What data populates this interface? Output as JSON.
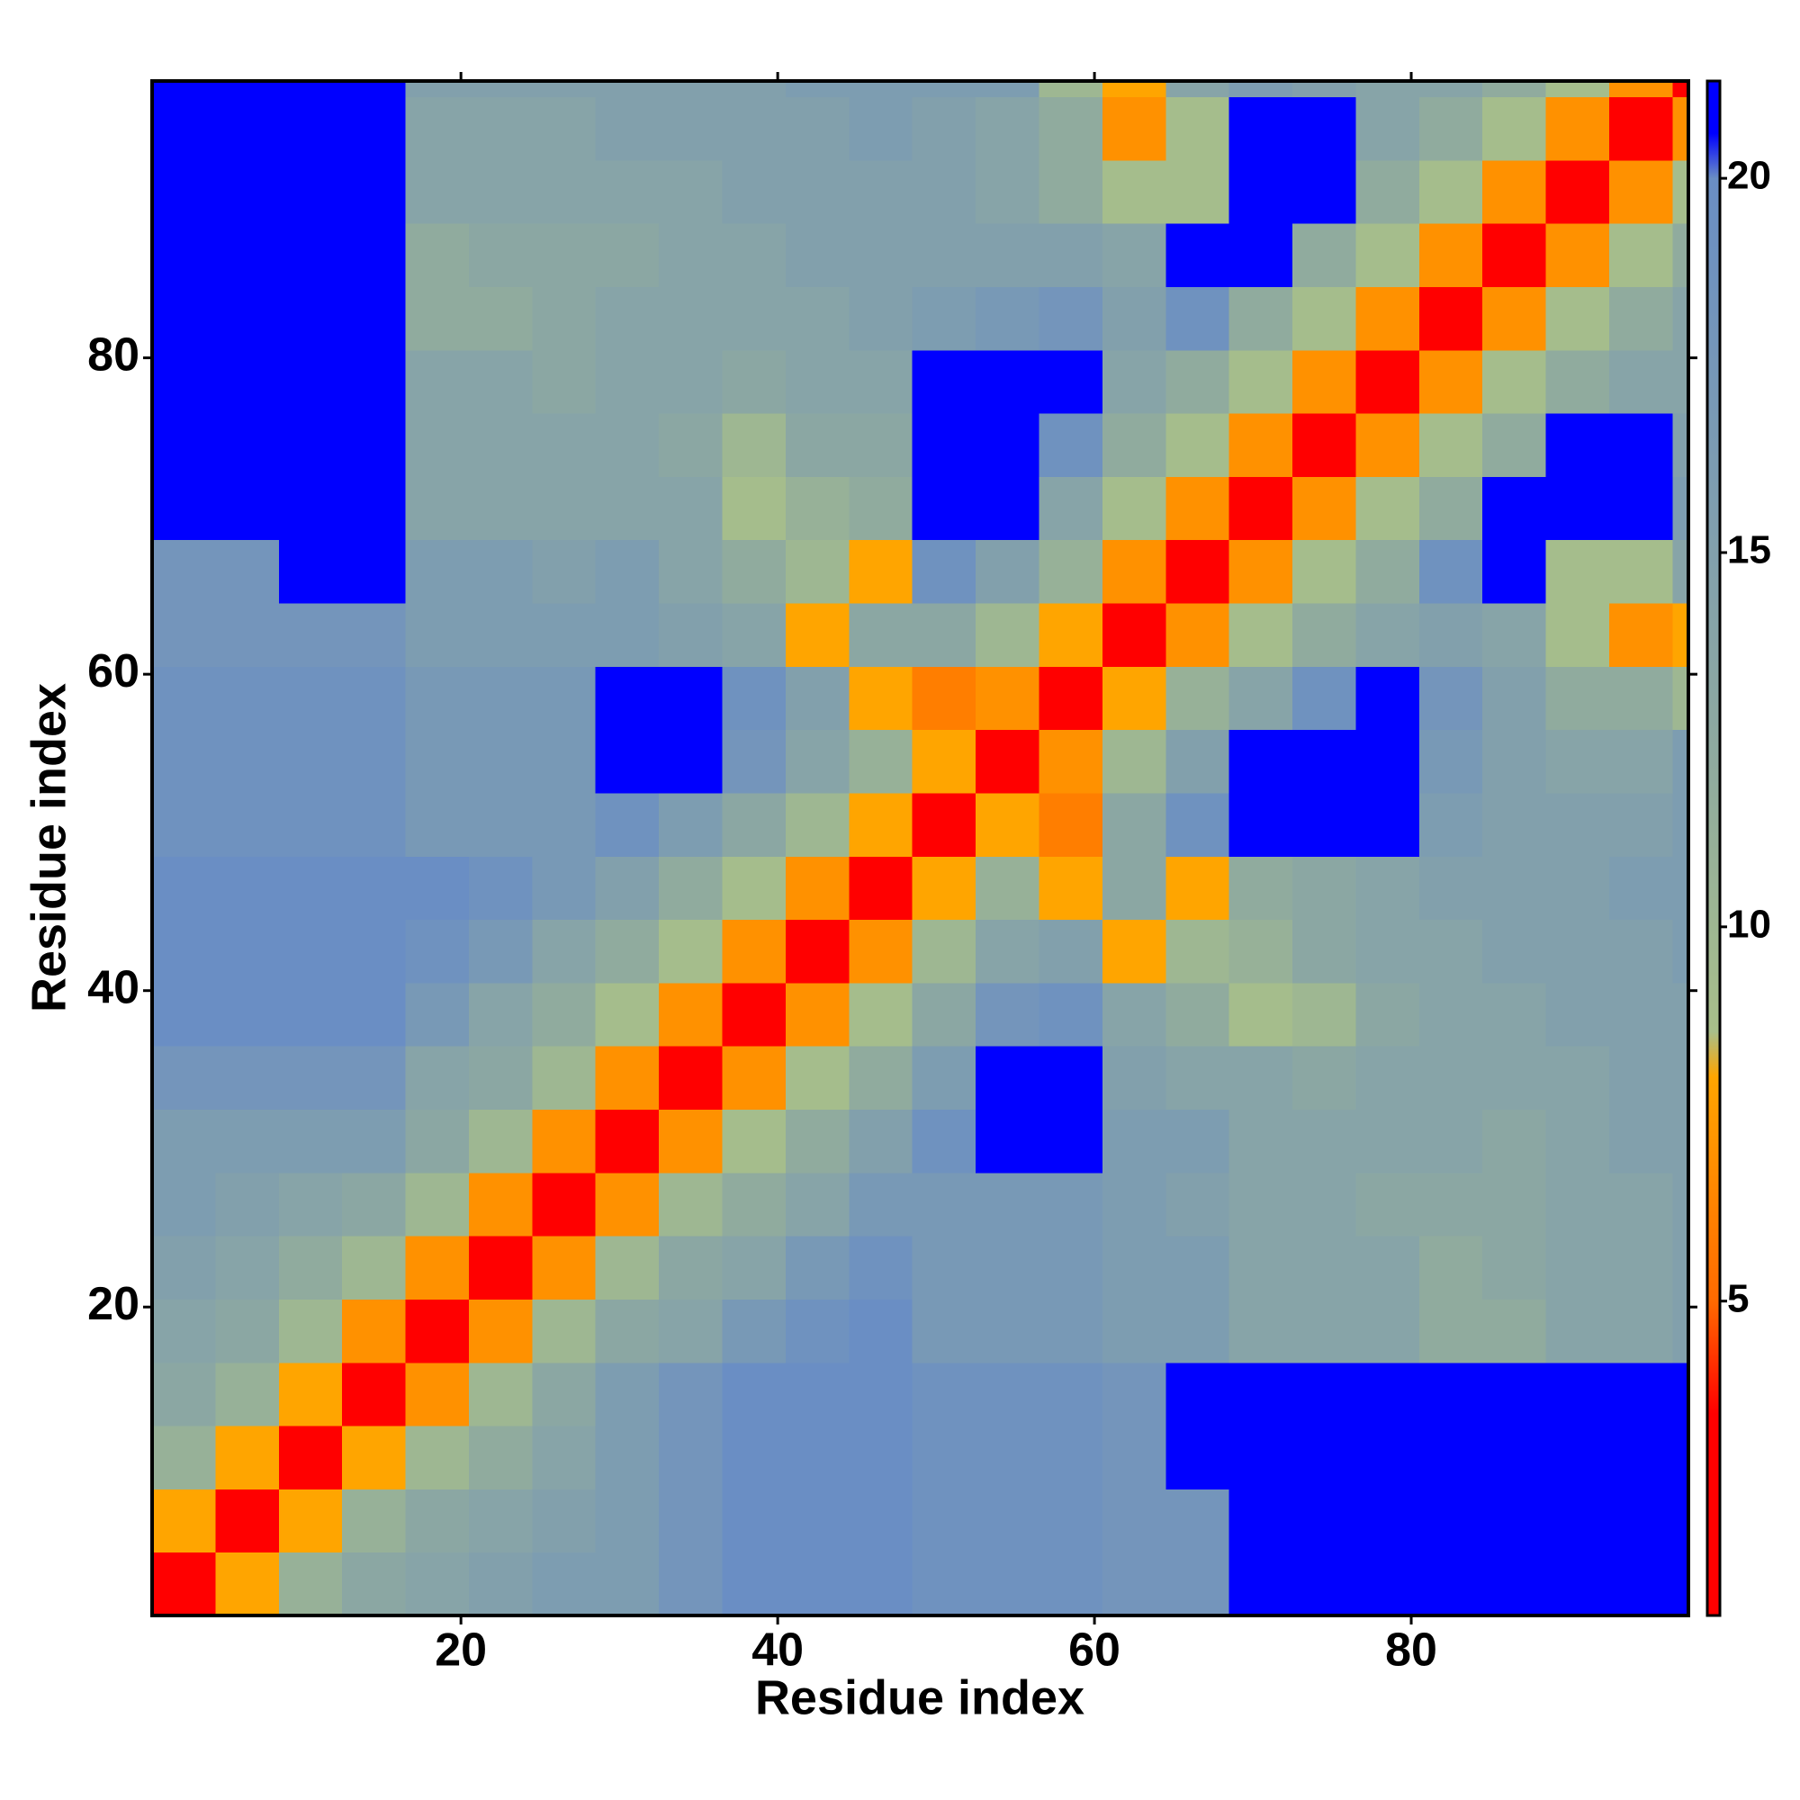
{
  "chart_data": {
    "type": "heatmap",
    "xlabel": "Residue index",
    "ylabel": "Residue index",
    "x_edges": [
      0.5,
      4.5,
      8.5,
      12.5,
      16.5,
      20.5,
      24.5,
      28.5,
      32.5,
      36.5,
      40.5,
      44.5,
      48.5,
      52.5,
      56.5,
      60.5,
      64.5,
      68.5,
      72.5,
      76.5,
      80.5,
      84.5,
      88.5,
      92.5,
      96.5,
      97.5
    ],
    "y_edges": [
      0.5,
      4.5,
      8.5,
      12.5,
      16.5,
      20.5,
      24.5,
      28.5,
      32.5,
      36.5,
      40.5,
      44.5,
      48.5,
      52.5,
      56.5,
      60.5,
      64.5,
      68.5,
      72.5,
      76.5,
      80.5,
      84.5,
      88.5,
      92.5,
      96.5,
      97.5
    ],
    "z": [
      [
        3,
        8,
        11,
        13,
        14,
        15,
        16,
        16,
        18,
        20,
        20,
        20,
        19,
        19,
        19,
        18,
        18,
        21,
        21,
        21,
        21,
        21,
        21,
        21,
        21
      ],
      [
        8,
        3,
        8,
        11,
        13,
        14,
        15,
        16,
        18,
        20,
        20,
        20,
        19,
        19,
        19,
        18,
        18,
        21,
        21,
        21,
        21,
        21,
        21,
        21,
        21
      ],
      [
        11,
        8,
        3,
        8,
        10,
        12,
        14,
        16,
        18,
        20,
        20,
        20,
        19,
        19,
        19,
        18,
        21,
        21,
        21,
        21,
        21,
        21,
        21,
        21,
        21
      ],
      [
        13,
        11,
        8,
        3,
        7,
        10,
        13,
        16,
        18,
        20,
        20,
        20,
        19,
        19,
        19,
        18,
        21,
        21,
        21,
        21,
        21,
        21,
        21,
        21,
        21
      ],
      [
        14,
        13,
        10,
        7,
        3,
        7,
        10,
        13,
        14,
        17,
        19,
        20,
        17,
        17,
        17,
        16,
        16,
        14,
        14,
        14,
        12,
        12,
        14,
        14,
        15
      ],
      [
        15,
        14,
        12,
        10,
        7,
        3,
        7,
        10,
        13,
        14,
        17,
        19,
        17,
        17,
        17,
        16,
        16,
        14,
        14,
        14,
        12,
        13,
        14,
        14,
        15
      ],
      [
        16,
        15,
        14,
        13,
        10,
        7,
        3,
        7,
        10,
        12,
        14,
        17,
        17,
        17,
        17,
        16,
        15,
        14,
        14,
        13,
        13,
        13,
        14,
        14,
        15
      ],
      [
        16,
        16,
        16,
        16,
        13,
        10,
        7,
        3,
        7,
        9,
        12,
        15,
        19,
        21,
        21,
        16,
        16,
        14,
        14,
        14,
        14,
        13,
        14,
        15,
        15
      ],
      [
        18,
        18,
        18,
        18,
        14,
        13,
        10,
        7,
        3,
        7,
        9,
        12,
        16,
        21,
        21,
        15,
        14,
        14,
        13,
        14,
        14,
        14,
        14,
        15,
        15
      ],
      [
        20,
        20,
        20,
        20,
        17,
        14,
        12,
        9,
        7,
        3,
        7,
        9,
        13,
        18,
        19,
        14,
        12,
        9,
        10,
        13,
        14,
        14,
        15,
        15,
        15
      ],
      [
        20,
        20,
        20,
        20,
        19,
        17,
        14,
        12,
        9,
        7,
        3,
        7,
        10,
        14,
        15,
        8,
        10,
        11,
        13,
        14,
        14,
        15,
        15,
        15,
        16
      ],
      [
        20,
        20,
        20,
        20,
        20,
        19,
        17,
        15,
        12,
        9,
        7,
        3,
        8,
        11,
        8,
        13,
        8,
        12,
        13,
        14,
        15,
        15,
        15,
        16,
        16
      ],
      [
        19,
        19,
        19,
        19,
        17,
        17,
        17,
        19,
        16,
        13,
        10,
        8,
        3,
        8,
        6,
        13,
        19,
        21,
        21,
        21,
        16,
        15,
        15,
        15,
        16
      ],
      [
        19,
        19,
        19,
        19,
        17,
        17,
        17,
        21,
        21,
        18,
        14,
        11,
        8,
        3,
        7,
        10,
        15,
        21,
        21,
        21,
        17,
        15,
        14,
        14,
        16
      ],
      [
        19,
        19,
        19,
        19,
        17,
        17,
        17,
        21,
        21,
        19,
        15,
        8,
        6,
        7,
        3,
        8,
        11,
        14,
        19,
        21,
        18,
        15,
        12,
        12,
        10
      ],
      [
        18,
        18,
        18,
        18,
        16,
        16,
        16,
        16,
        15,
        14,
        8,
        13,
        13,
        10,
        8,
        3,
        7,
        9,
        12,
        14,
        15,
        14,
        9,
        7,
        8
      ],
      [
        18,
        18,
        21,
        21,
        16,
        16,
        15,
        16,
        14,
        12,
        10,
        8,
        19,
        15,
        11,
        7,
        3,
        7,
        9,
        12,
        19,
        21,
        9,
        9,
        14
      ],
      [
        21,
        21,
        21,
        21,
        14,
        14,
        14,
        14,
        14,
        9,
        11,
        12,
        21,
        21,
        14,
        9,
        7,
        3,
        7,
        9,
        12,
        21,
        21,
        21,
        16
      ],
      [
        21,
        21,
        21,
        21,
        14,
        14,
        14,
        14,
        13,
        10,
        13,
        13,
        21,
        21,
        19,
        12,
        9,
        7,
        3,
        7,
        9,
        12,
        21,
        21,
        15
      ],
      [
        21,
        21,
        21,
        21,
        14,
        14,
        13,
        14,
        14,
        13,
        14,
        14,
        21,
        21,
        21,
        14,
        12,
        9,
        7,
        3,
        7,
        9,
        12,
        14,
        14
      ],
      [
        21,
        21,
        21,
        21,
        12,
        12,
        13,
        14,
        14,
        14,
        14,
        15,
        16,
        17,
        18,
        15,
        19,
        12,
        9,
        7,
        3,
        7,
        9,
        12,
        14
      ],
      [
        21,
        21,
        21,
        21,
        12,
        13,
        13,
        13,
        14,
        14,
        15,
        15,
        15,
        15,
        15,
        14,
        21,
        21,
        12,
        9,
        7,
        3,
        7,
        9,
        12
      ],
      [
        21,
        21,
        21,
        21,
        14,
        14,
        14,
        14,
        14,
        15,
        15,
        15,
        15,
        14,
        12,
        9,
        9,
        21,
        21,
        12,
        9,
        7,
        3,
        7,
        9
      ],
      [
        21,
        21,
        21,
        21,
        14,
        14,
        14,
        15,
        15,
        15,
        15,
        16,
        15,
        14,
        12,
        7,
        9,
        21,
        21,
        14,
        12,
        9,
        7,
        3,
        7
      ],
      [
        21,
        21,
        21,
        21,
        15,
        15,
        15,
        15,
        15,
        15,
        16,
        16,
        16,
        16,
        10,
        8,
        14,
        16,
        15,
        14,
        14,
        12,
        9,
        7,
        3
      ]
    ],
    "xlim": [
      0.5,
      97.5
    ],
    "ylim": [
      0.5,
      97.5
    ],
    "xticks": [
      20,
      40,
      60,
      80
    ],
    "yticks": [
      20,
      40,
      60,
      80
    ],
    "zlim": [
      0.8,
      21.3
    ],
    "zticks": [
      5,
      10,
      15,
      20
    ],
    "colorscale": [
      [
        0.8,
        "#ff0000"
      ],
      [
        3.5,
        "#ff0000"
      ],
      [
        5,
        "#ff6a00"
      ],
      [
        8,
        "#ffa500"
      ],
      [
        8.6,
        "#a8bf8a"
      ],
      [
        12,
        "#90ab9e"
      ],
      [
        20,
        "#6a8ec4"
      ],
      [
        20.6,
        "#0000ff"
      ],
      [
        21.3,
        "#0000ff"
      ]
    ]
  }
}
